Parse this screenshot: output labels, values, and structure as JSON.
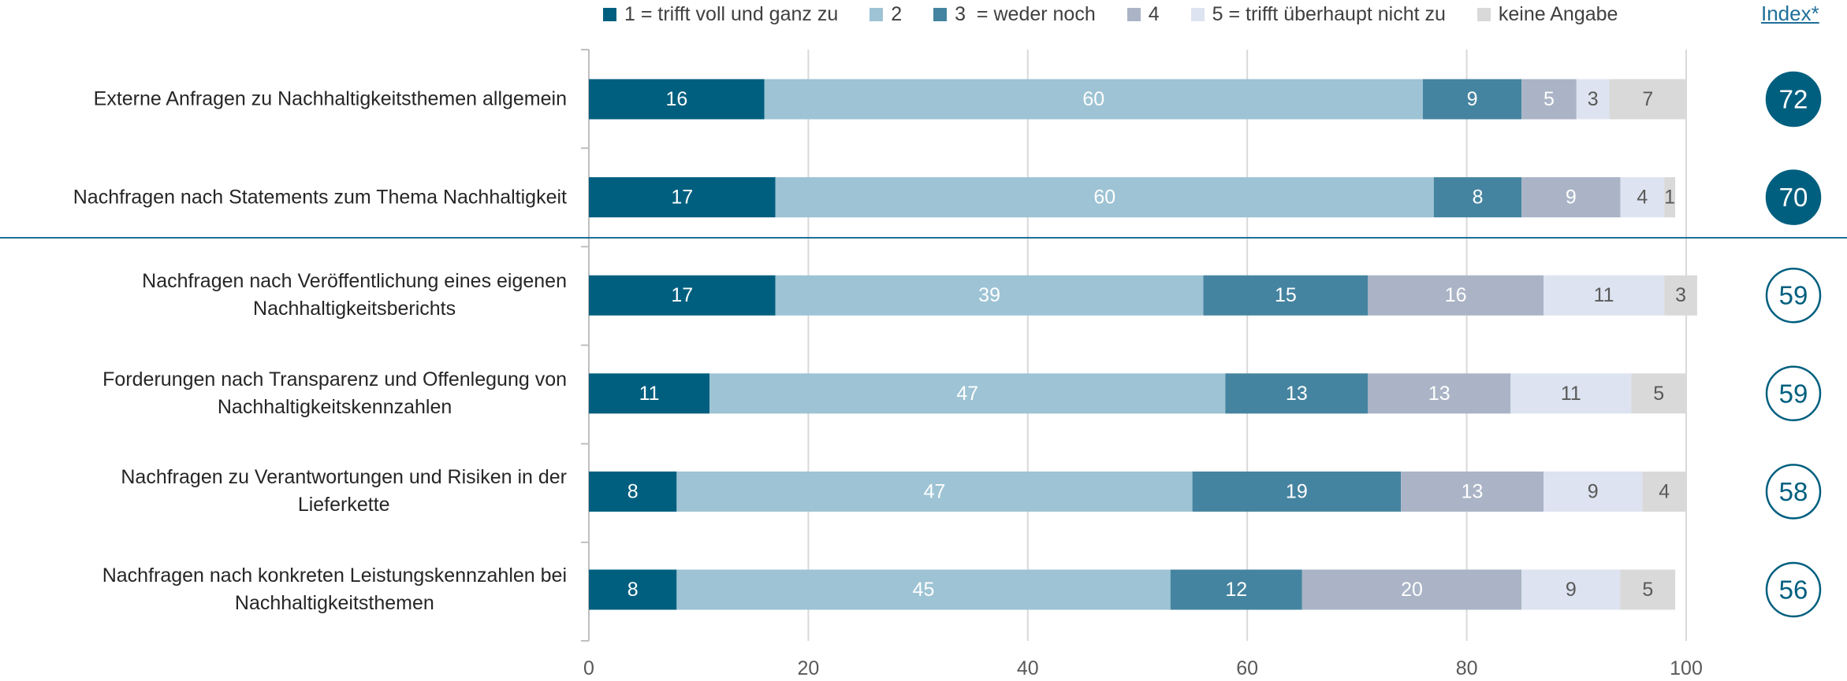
{
  "chart_data": {
    "type": "stacked_barh",
    "categories": [
      "Externe Anfragen zu Nachhaltigkeitsthemen allgemein",
      "Nachfragen nach Statements zum Thema Nachhaltigkeit",
      "Nachfragen nach Veröffentlichung eines eigenen\nNachhaltigkeitsberichts",
      "Forderungen nach Transparenz und Offenlegung von\nNachhaltigkeitskennzahlen",
      "Nachfragen zu Verantwortungen und Risiken in der\nLieferkette",
      "Nachfragen nach konkreten Leistungskennzahlen bei\nNachhaltigkeitsthemen"
    ],
    "series": [
      {
        "name": "1 = trifft voll und ganz zu",
        "color": "#005f7f",
        "label_color": "#ffffff",
        "values": [
          16,
          17,
          17,
          11,
          8,
          8
        ]
      },
      {
        "name": "2",
        "color": "#9dc3d4",
        "label_color": "#ffffff",
        "values": [
          60,
          60,
          39,
          47,
          47,
          45
        ]
      },
      {
        "name": "3  = weder noch",
        "color": "#4584a0",
        "label_color": "#ffffff",
        "values": [
          9,
          8,
          15,
          13,
          19,
          12
        ]
      },
      {
        "name": "4",
        "color": "#aab4c6",
        "label_color": "#ffffff",
        "values": [
          5,
          9,
          16,
          13,
          13,
          20
        ]
      },
      {
        "name": "5 = trifft überhaupt nicht zu",
        "color": "#dde3f0",
        "label_color": "#595959",
        "values": [
          3,
          4,
          11,
          11,
          9,
          9
        ]
      },
      {
        "name": "keine Angabe",
        "color": "#d9d9d9",
        "label_color": "#595959",
        "values": [
          7,
          1,
          3,
          5,
          4,
          5
        ]
      }
    ],
    "xlim": [
      0,
      100
    ],
    "xticks": [
      0,
      20,
      40,
      60,
      80,
      100
    ],
    "grid": true,
    "index": {
      "label": "Index*",
      "values": [
        72,
        70,
        59,
        59,
        58,
        56
      ],
      "filled": [
        true,
        true,
        false,
        false,
        false,
        false
      ],
      "color": "#005f7f"
    }
  }
}
